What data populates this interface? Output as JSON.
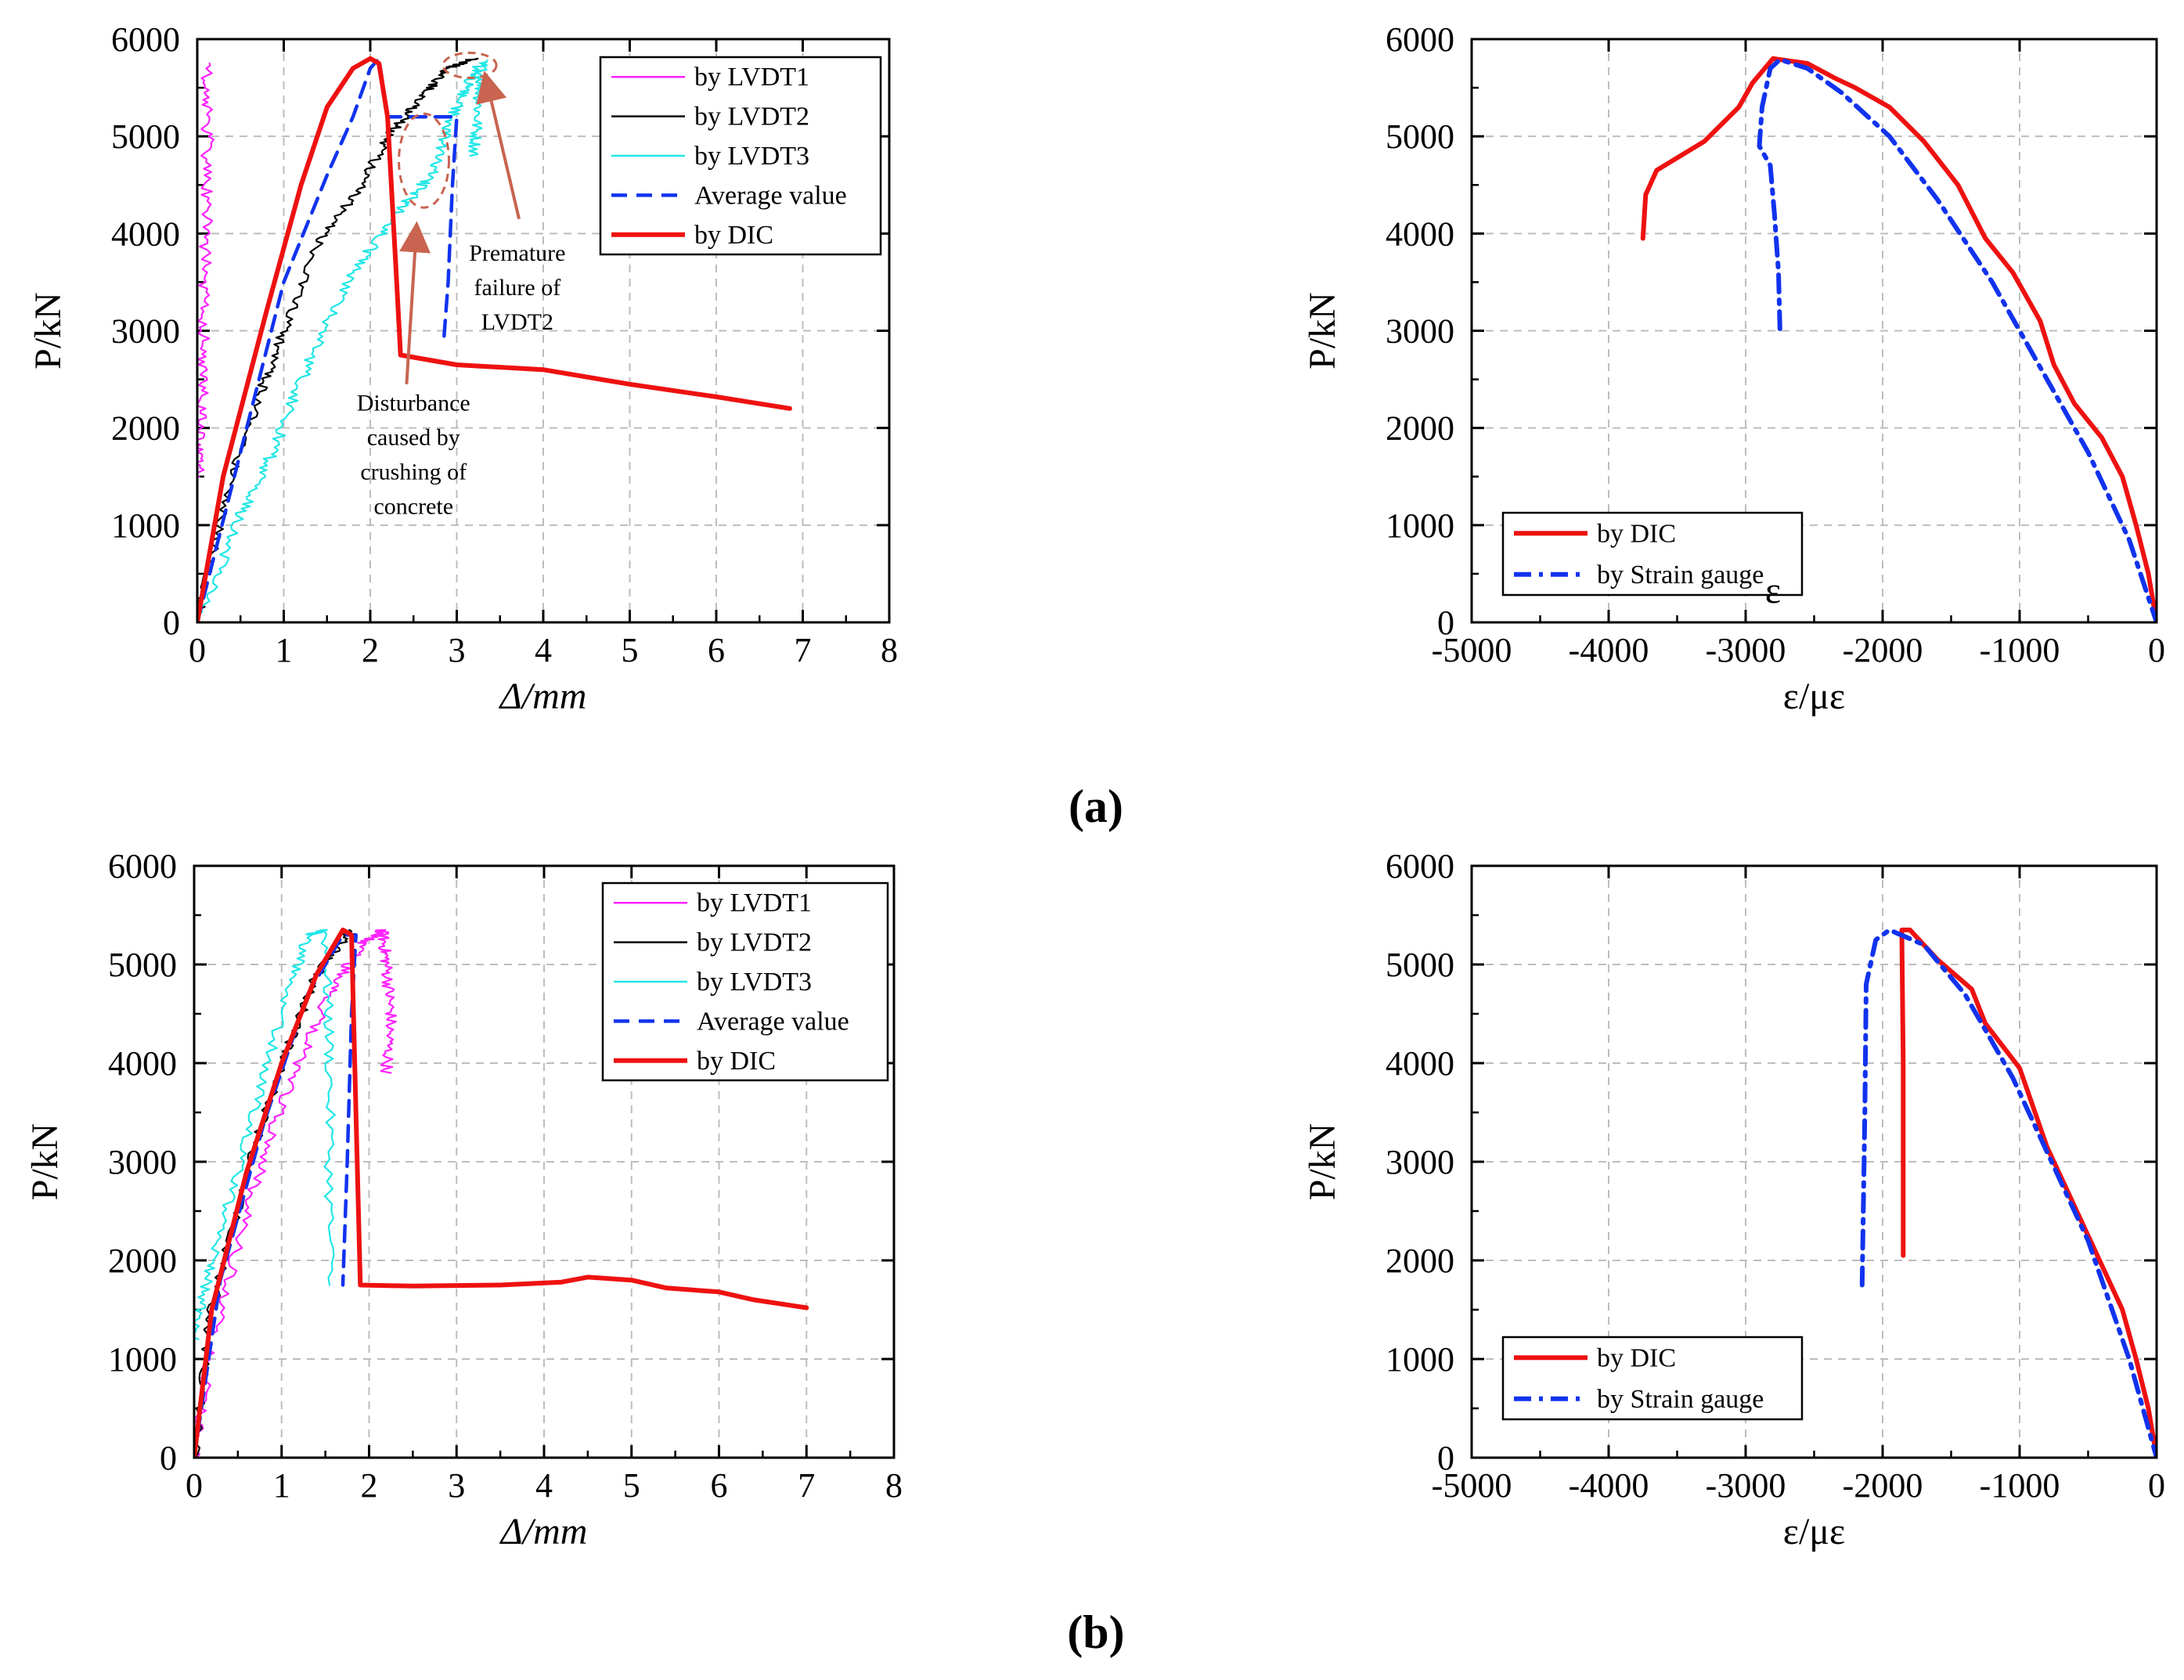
{
  "figure": {
    "panel_labels": [
      "(a)",
      "(b)"
    ]
  },
  "colors": {
    "lvdt1": "#ff22ff",
    "lvdt2": "#000000",
    "lvdt3": "#22e6e6",
    "average": "#1133ee",
    "dic": "#ee1111",
    "strain_gauge": "#1133ee",
    "annotation": "#c86450"
  },
  "chart_data": [
    {
      "id": "a-left",
      "type": "line",
      "xlabel": "Δ/mm",
      "ylabel": "P/kN",
      "xlim": [
        0,
        8
      ],
      "ylim": [
        0,
        6000
      ],
      "xticks": [
        "0",
        "1",
        "2",
        "3",
        "4",
        "5",
        "6",
        "7",
        "8"
      ],
      "yticks": [
        "0",
        "1000",
        "2000",
        "3000",
        "4000",
        "5000",
        "6000"
      ],
      "grid": true,
      "legend_position": "top-right",
      "annotations": [
        {
          "name": "annotation-premature-failure",
          "lines": [
            "Premature",
            "failure of",
            "LVDT2"
          ],
          "x": 3.7,
          "y": 3720
        },
        {
          "name": "annotation-disturbance",
          "lines": [
            "Disturbance",
            "caused by",
            "crushing of",
            "concrete"
          ],
          "x": 2.5,
          "y": 2180
        }
      ],
      "series": [
        {
          "name": "by LVDT1",
          "key": "lvdt1",
          "style": "noisy",
          "noise": 0.035,
          "points": [
            [
              0.0,
              1500
            ],
            [
              0.05,
              2200
            ],
            [
              0.08,
              3000
            ],
            [
              0.1,
              4000
            ],
            [
              0.12,
              5000
            ],
            [
              0.1,
              5750
            ]
          ]
        },
        {
          "name": "by LVDT2",
          "key": "lvdt2",
          "style": "noisy",
          "noise": 0.03,
          "points": [
            [
              0.0,
              0
            ],
            [
              0.3,
              1200
            ],
            [
              0.7,
              2300
            ],
            [
              1.0,
              3000
            ],
            [
              1.4,
              3900
            ],
            [
              1.9,
              4500
            ],
            [
              2.2,
              5000
            ],
            [
              2.6,
              5400
            ],
            [
              2.9,
              5700
            ],
            [
              3.2,
              5800
            ]
          ]
        },
        {
          "name": "by LVDT3",
          "key": "lvdt3",
          "style": "noisy",
          "noise": 0.035,
          "points": [
            [
              0.0,
              0
            ],
            [
              0.5,
              1100
            ],
            [
              0.9,
              1800
            ],
            [
              1.3,
              2700
            ],
            [
              1.8,
              3600
            ],
            [
              2.3,
              4200
            ],
            [
              2.7,
              4600
            ],
            [
              2.9,
              5100
            ],
            [
              3.1,
              5500
            ],
            [
              3.3,
              5780
            ],
            [
              3.25,
              5300
            ],
            [
              3.2,
              4800
            ]
          ]
        },
        {
          "name": "Average value",
          "key": "average",
          "style": "dash",
          "points": [
            [
              0.0,
              0
            ],
            [
              0.4,
              1400
            ],
            [
              1.0,
              3500
            ],
            [
              1.5,
              4600
            ],
            [
              1.8,
              5200
            ],
            [
              2.0,
              5700
            ],
            [
              2.1,
              5800
            ],
            [
              2.15,
              5500
            ],
            [
              2.2,
              5200
            ],
            [
              3.0,
              5200
            ],
            [
              2.95,
              4500
            ],
            [
              2.9,
              3500
            ],
            [
              2.85,
              2900
            ]
          ]
        },
        {
          "name": "by DIC",
          "key": "dic",
          "style": "solid",
          "points": [
            [
              0.0,
              0
            ],
            [
              0.3,
              1500
            ],
            [
              0.8,
              3200
            ],
            [
              1.2,
              4500
            ],
            [
              1.5,
              5300
            ],
            [
              1.8,
              5700
            ],
            [
              2.0,
              5800
            ],
            [
              2.1,
              5750
            ],
            [
              2.2,
              5200
            ],
            [
              2.3,
              3600
            ],
            [
              2.35,
              2750
            ],
            [
              3.0,
              2650
            ],
            [
              4.0,
              2600
            ],
            [
              5.0,
              2450
            ],
            [
              6.0,
              2320
            ],
            [
              6.85,
              2200
            ]
          ]
        }
      ]
    },
    {
      "id": "a-right",
      "type": "line",
      "xlabel": "ε/με",
      "ylabel": "P/kN",
      "xlim": [
        -5000,
        0
      ],
      "ylim": [
        0,
        6000
      ],
      "xticks": [
        "-5000",
        "-4000",
        "-3000",
        "-2000",
        "-1000",
        "0"
      ],
      "yticks": [
        "0",
        "1000",
        "2000",
        "3000",
        "4000",
        "5000",
        "6000"
      ],
      "grid": true,
      "legend_position": "bottom-left",
      "annotations": [
        {
          "name": "annotation-epsilon",
          "lines": [
            "ε"
          ],
          "x": -2800,
          "y": 200
        }
      ],
      "series": [
        {
          "name": "by DIC",
          "key": "dic",
          "style": "solid",
          "points": [
            [
              -3750,
              3950
            ],
            [
              -3730,
              4400
            ],
            [
              -3650,
              4650
            ],
            [
              -3300,
              4950
            ],
            [
              -3050,
              5300
            ],
            [
              -2950,
              5550
            ],
            [
              -2800,
              5800
            ],
            [
              -2550,
              5750
            ],
            [
              -2350,
              5600
            ],
            [
              -2200,
              5500
            ],
            [
              -1950,
              5300
            ],
            [
              -1700,
              4950
            ],
            [
              -1450,
              4500
            ],
            [
              -1250,
              3950
            ],
            [
              -1050,
              3600
            ],
            [
              -850,
              3100
            ],
            [
              -750,
              2650
            ],
            [
              -600,
              2250
            ],
            [
              -400,
              1900
            ],
            [
              -250,
              1500
            ],
            [
              -150,
              1000
            ],
            [
              -60,
              500
            ],
            [
              0,
              0
            ]
          ]
        },
        {
          "name": "by Strain gauge",
          "key": "strain_gauge",
          "style": "dashdot",
          "points": [
            [
              -2750,
              3020
            ],
            [
              -2760,
              3600
            ],
            [
              -2790,
              4200
            ],
            [
              -2820,
              4700
            ],
            [
              -2900,
              4900
            ],
            [
              -2880,
              5300
            ],
            [
              -2820,
              5700
            ],
            [
              -2750,
              5790
            ],
            [
              -2550,
              5700
            ],
            [
              -2300,
              5450
            ],
            [
              -1950,
              5000
            ],
            [
              -1600,
              4350
            ],
            [
              -1200,
              3500
            ],
            [
              -800,
              2500
            ],
            [
              -500,
              1750
            ],
            [
              -200,
              850
            ],
            [
              0,
              0
            ]
          ]
        }
      ]
    },
    {
      "id": "b-left",
      "type": "line",
      "xlabel": "Δ/mm",
      "ylabel": "P/kN",
      "xlim": [
        0,
        8
      ],
      "ylim": [
        0,
        6000
      ],
      "xticks": [
        "0",
        "1",
        "2",
        "3",
        "4",
        "5",
        "6",
        "7",
        "8"
      ],
      "yticks": [
        "0",
        "1000",
        "2000",
        "3000",
        "4000",
        "5000",
        "6000"
      ],
      "grid": true,
      "legend_position": "top-right",
      "annotations": [],
      "series": [
        {
          "name": "by LVDT1",
          "key": "lvdt1",
          "style": "noisy",
          "noise": 0.035,
          "points": [
            [
              0.0,
              0
            ],
            [
              0.2,
              1100
            ],
            [
              0.6,
              2500
            ],
            [
              1.0,
              3600
            ],
            [
              1.5,
              4600
            ],
            [
              1.9,
              5200
            ],
            [
              2.15,
              5350
            ],
            [
              2.2,
              5000
            ],
            [
              2.25,
              4500
            ],
            [
              2.2,
              3900
            ]
          ]
        },
        {
          "name": "by LVDT2",
          "key": "lvdt2",
          "style": "noisy",
          "noise": 0.03,
          "points": [
            [
              0.0,
              0
            ],
            [
              0.2,
              1500
            ],
            [
              0.6,
              2900
            ],
            [
              1.0,
              4000
            ],
            [
              1.4,
              4900
            ],
            [
              1.8,
              5350
            ]
          ]
        },
        {
          "name": "by LVDT3",
          "key": "lvdt3",
          "style": "noisy",
          "noise": 0.03,
          "points": [
            [
              0.0,
              1200
            ],
            [
              0.2,
              2000
            ],
            [
              0.6,
              3200
            ],
            [
              1.0,
              4500
            ],
            [
              1.3,
              5300
            ],
            [
              1.5,
              5350
            ],
            [
              1.55,
              4000
            ],
            [
              1.55,
              1750
            ]
          ]
        },
        {
          "name": "Average value",
          "key": "average",
          "style": "dash",
          "points": [
            [
              0.0,
              0
            ],
            [
              0.3,
              1800
            ],
            [
              0.8,
              3400
            ],
            [
              1.3,
              4700
            ],
            [
              1.7,
              5300
            ],
            [
              1.85,
              5300
            ],
            [
              1.8,
              4500
            ],
            [
              1.75,
              3000
            ],
            [
              1.7,
              1750
            ]
          ]
        },
        {
          "name": "by DIC",
          "key": "dic",
          "style": "solid",
          "points": [
            [
              0.0,
              0
            ],
            [
              0.2,
              1500
            ],
            [
              0.6,
              2900
            ],
            [
              1.0,
              4000
            ],
            [
              1.4,
              4900
            ],
            [
              1.7,
              5350
            ],
            [
              1.8,
              5300
            ],
            [
              1.85,
              3500
            ],
            [
              1.9,
              1750
            ],
            [
              2.5,
              1740
            ],
            [
              3.5,
              1750
            ],
            [
              4.2,
              1780
            ],
            [
              4.5,
              1830
            ],
            [
              5.0,
              1800
            ],
            [
              5.4,
              1720
            ],
            [
              6.0,
              1680
            ],
            [
              6.4,
              1600
            ],
            [
              7.0,
              1520
            ]
          ]
        }
      ]
    },
    {
      "id": "b-right",
      "type": "line",
      "xlabel": "ε/με",
      "ylabel": "P/kN",
      "xlim": [
        -5000,
        0
      ],
      "ylim": [
        0,
        6000
      ],
      "xticks": [
        "-5000",
        "-4000",
        "-3000",
        "-2000",
        "-1000",
        "0"
      ],
      "yticks": [
        "0",
        "1000",
        "2000",
        "3000",
        "4000",
        "5000",
        "6000"
      ],
      "grid": true,
      "legend_position": "bottom-left",
      "annotations": [],
      "series": [
        {
          "name": "by DIC",
          "key": "dic",
          "style": "solid",
          "points": [
            [
              -1850,
              2050
            ],
            [
              -1850,
              4000
            ],
            [
              -1860,
              5350
            ],
            [
              -1800,
              5350
            ],
            [
              -1600,
              5050
            ],
            [
              -1350,
              4750
            ],
            [
              -1250,
              4400
            ],
            [
              -1000,
              3950
            ],
            [
              -800,
              3150
            ],
            [
              -650,
              2700
            ],
            [
              -550,
              2400
            ],
            [
              -450,
              2100
            ],
            [
              -250,
              1500
            ],
            [
              -150,
              1000
            ],
            [
              -60,
              500
            ],
            [
              0,
              0
            ]
          ]
        },
        {
          "name": "by Strain gauge",
          "key": "strain_gauge",
          "style": "dashdot",
          "points": [
            [
              -2150,
              1750
            ],
            [
              -2130,
              3500
            ],
            [
              -2120,
              4800
            ],
            [
              -2050,
              5250
            ],
            [
              -1950,
              5350
            ],
            [
              -1700,
              5200
            ],
            [
              -1400,
              4700
            ],
            [
              -1050,
              3850
            ],
            [
              -800,
              3100
            ],
            [
              -500,
              2200
            ],
            [
              -200,
              1000
            ],
            [
              0,
              0
            ]
          ]
        }
      ]
    }
  ]
}
